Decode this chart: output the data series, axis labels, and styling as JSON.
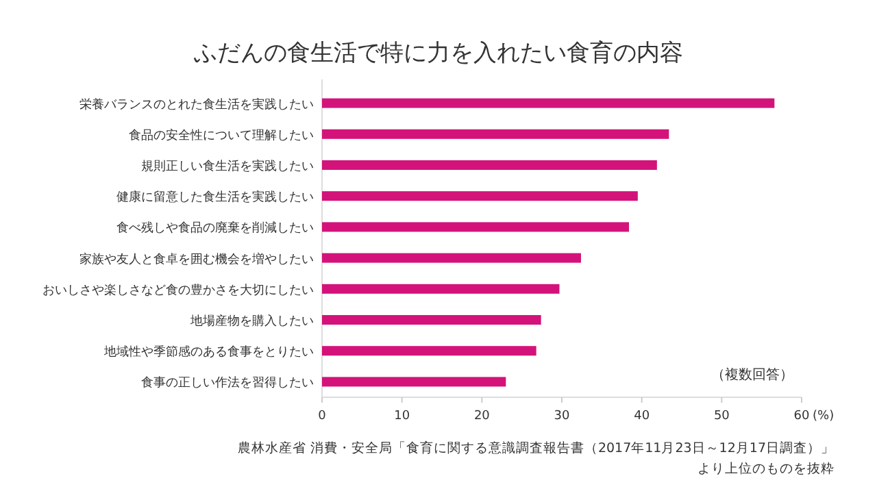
{
  "chart_data": {
    "type": "bar",
    "orientation": "horizontal",
    "title": "ふだんの食生活で特に力を入れたい食育の内容",
    "categories": [
      "栄養バランスのとれた食生活を実践したい",
      "食品の安全性について理解したい",
      "規則正しい食生活を実践したい",
      "健康に留意した食生活を実践したい",
      "食べ残しや食品の廃棄を削減したい",
      "家族や友人と食卓を囲む機会を増やしたい",
      "おいしさや楽しさなど食の豊かさを大切にしたい",
      "地場産物を購入したい",
      "地域性や季節感のある食事をとりたい",
      "食事の正しい作法を習得したい"
    ],
    "values": [
      56.6,
      43.4,
      41.9,
      39.5,
      38.4,
      32.4,
      29.7,
      27.4,
      26.8,
      23.0
    ],
    "color": "#d3137a",
    "xlim": [
      0,
      60
    ],
    "xticks": [
      0,
      10,
      20,
      30,
      40,
      50,
      60
    ],
    "xlabel": "(%)",
    "grid": false,
    "annotations": [
      "（複数回答）",
      "農林水産省 消費・安全局「食育に関する意識調査報告書（2017年11月23日～12月17日調査）」",
      "より上位のものを抜粋"
    ]
  }
}
